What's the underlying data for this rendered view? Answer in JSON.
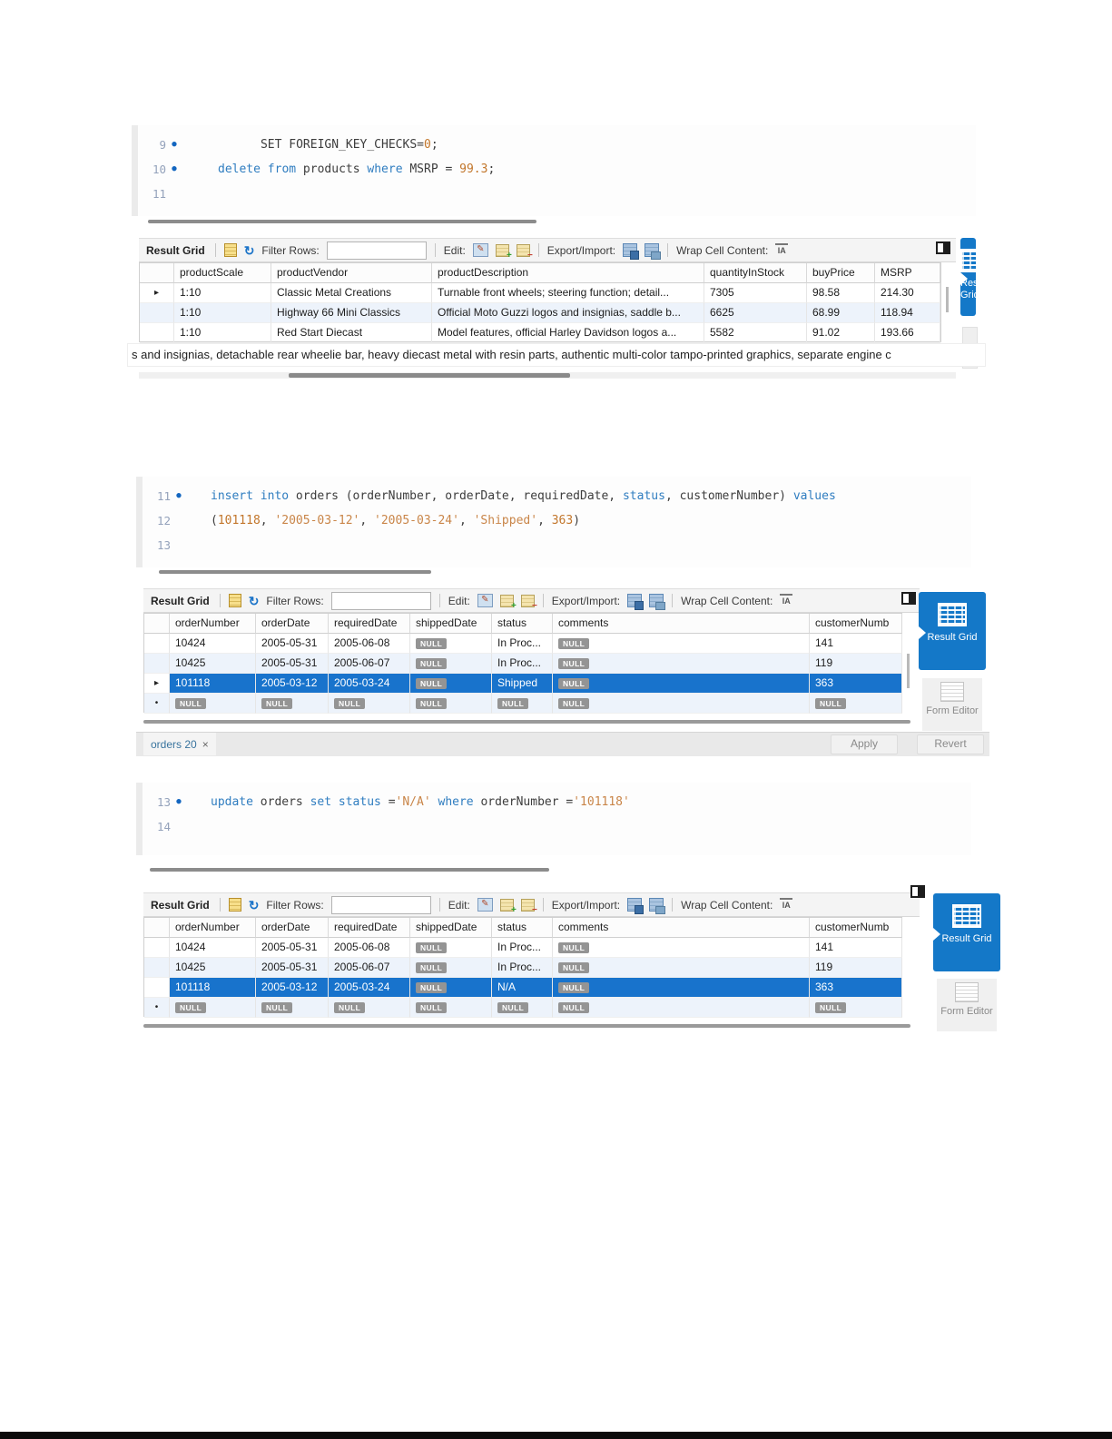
{
  "app": "MySQL Workbench result panels",
  "colors": {
    "accent_blue": "#1478c8",
    "selection_blue": "#1873cc",
    "keyword_blue": "#2f7dc0",
    "literal_orange": "#c2762b",
    "string_orange": "#c98548",
    "row_alt_blue": "#edf3fb",
    "null_badge_gray": "#949494"
  },
  "icons": {
    "refresh": "↻",
    "edit_pencil": "✎",
    "add_badge": "+",
    "remove_badge": "−",
    "arrow_marker": "▸",
    "new_row_marker": "•",
    "close": "×"
  },
  "toolbar": {
    "result_grid": "Result Grid",
    "filter_rows": "Filter Rows:",
    "filter_value": "",
    "edit": "Edit:",
    "export_import": "Export/Import:",
    "wrap_cell_content": "Wrap Cell Content:",
    "wrap_icon_text": "IA"
  },
  "sidebar": {
    "result_grid": "Result Grid",
    "form_editor": "Form Editor"
  },
  "null_badge": "NULL",
  "sections": {
    "products": {
      "code": [
        {
          "num": "9",
          "dot": true,
          "tokens": [
            [
              "plain",
              "      SET FOREIGN_KEY_CHECKS="
            ],
            [
              "num",
              "0"
            ],
            [
              "plain",
              ";"
            ]
          ]
        },
        {
          "num": "10",
          "dot": true,
          "tokens": [
            [
              "kw",
              "delete"
            ],
            [
              "plain",
              " "
            ],
            [
              "kw",
              "from"
            ],
            [
              "plain",
              " products "
            ],
            [
              "kw",
              "where"
            ],
            [
              "plain",
              " MSRP = "
            ],
            [
              "num",
              "99.3"
            ],
            [
              "plain",
              ";"
            ]
          ]
        },
        {
          "num": "11",
          "dot": false,
          "tokens": []
        }
      ],
      "grid": {
        "columns": [
          "productScale",
          "productVendor",
          "productDescription",
          "quantityInStock",
          "buyPrice",
          "MSRP"
        ],
        "rows": [
          {
            "marker": "arrow",
            "selected": false,
            "cells": [
              "1:10",
              "Classic Metal Creations",
              "Turnable front wheels; steering function; detail...",
              "7305",
              "98.58",
              "214.30"
            ]
          },
          {
            "marker": "",
            "selected": false,
            "cells": [
              "1:10",
              "Highway 66 Mini Classics",
              "Official Moto Guzzi logos and insignias, saddle b...",
              "6625",
              "68.99",
              "118.94"
            ]
          },
          {
            "marker": "",
            "selected": false,
            "cells": [
              "1:10",
              "Red Start Diecast",
              "Model features, official Harley Davidson logos a...",
              "5582",
              "91.02",
              "193.66"
            ]
          }
        ]
      },
      "overflow_text": "s and insignias, detachable rear wheelie bar, heavy diecast metal with resin parts, authentic multi-color tampo-printed graphics, separate engine c"
    },
    "orders_insert": {
      "code": [
        {
          "num": "11",
          "dot": true,
          "tokens": [
            [
              "kw",
              "insert"
            ],
            [
              "plain",
              " "
            ],
            [
              "kw",
              "into"
            ],
            [
              "plain",
              " orders (orderNumber, orderDate, requiredDate, "
            ],
            [
              "kw",
              "status"
            ],
            [
              "plain",
              ", customerNumber) "
            ],
            [
              "kw",
              "values"
            ]
          ]
        },
        {
          "num": "12",
          "dot": false,
          "tokens": [
            [
              "plain",
              "("
            ],
            [
              "num",
              "101118"
            ],
            [
              "plain",
              ", "
            ],
            [
              "str",
              "'2005-03-12'"
            ],
            [
              "plain",
              ", "
            ],
            [
              "str",
              "'2005-03-24'"
            ],
            [
              "plain",
              ", "
            ],
            [
              "str",
              "'Shipped'"
            ],
            [
              "plain",
              ", "
            ],
            [
              "num",
              "363"
            ],
            [
              "plain",
              ")"
            ]
          ]
        },
        {
          "num": "13",
          "dot": false,
          "tokens": []
        }
      ],
      "grid": {
        "columns": [
          "orderNumber",
          "orderDate",
          "requiredDate",
          "shippedDate",
          "status",
          "comments",
          "customerNumb"
        ],
        "rows": [
          {
            "marker": "",
            "selected": false,
            "cells": [
              "10424",
              "2005-05-31",
              "2005-06-08",
              null,
              "In Proc...",
              null,
              "141"
            ]
          },
          {
            "marker": "",
            "selected": false,
            "cells": [
              "10425",
              "2005-05-31",
              "2005-06-07",
              null,
              "In Proc...",
              null,
              "119"
            ]
          },
          {
            "marker": "arrow",
            "selected": true,
            "cells": [
              "101118",
              "2005-03-12",
              "2005-03-24",
              null,
              "Shipped",
              null,
              "363"
            ]
          },
          {
            "marker": "asterisk",
            "selected": false,
            "cells": [
              null,
              null,
              null,
              null,
              null,
              null,
              null
            ]
          }
        ]
      },
      "tab_label": "orders 20",
      "apply": "Apply",
      "revert": "Revert"
    },
    "orders_update": {
      "code": [
        {
          "num": "13",
          "dot": true,
          "tokens": [
            [
              "kw",
              "update"
            ],
            [
              "plain",
              " orders "
            ],
            [
              "kw",
              "set"
            ],
            [
              "plain",
              " "
            ],
            [
              "kw",
              "status"
            ],
            [
              "plain",
              " ="
            ],
            [
              "str",
              "'N/A'"
            ],
            [
              "plain",
              " "
            ],
            [
              "kw",
              "where"
            ],
            [
              "plain",
              " orderNumber ="
            ],
            [
              "str",
              "'101118'"
            ]
          ]
        },
        {
          "num": "14",
          "dot": false,
          "tokens": []
        }
      ],
      "grid": {
        "columns": [
          "orderNumber",
          "orderDate",
          "requiredDate",
          "shippedDate",
          "status",
          "comments",
          "customerNumb"
        ],
        "rows": [
          {
            "marker": "",
            "selected": false,
            "cells": [
              "10424",
              "2005-05-31",
              "2005-06-08",
              null,
              "In Proc...",
              null,
              "141"
            ]
          },
          {
            "marker": "",
            "selected": false,
            "cells": [
              "10425",
              "2005-05-31",
              "2005-06-07",
              null,
              "In Proc...",
              null,
              "119"
            ]
          },
          {
            "marker": "",
            "selected": true,
            "cells": [
              "101118",
              "2005-03-12",
              "2005-03-24",
              null,
              "N/A",
              null,
              "363"
            ]
          },
          {
            "marker": "asterisk",
            "selected": false,
            "cells": [
              null,
              null,
              null,
              null,
              null,
              null,
              null
            ]
          }
        ]
      }
    }
  }
}
